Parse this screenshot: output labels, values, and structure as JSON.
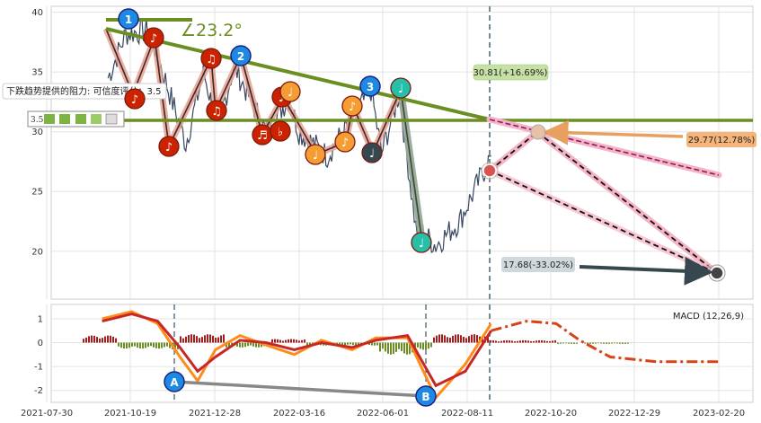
{
  "chart_data": [
    {
      "type": "line",
      "title": "",
      "xlabel": "",
      "ylabel": "",
      "ylim": [
        16,
        40.5
      ],
      "yticks": [
        20,
        25,
        30,
        35,
        40
      ],
      "grid": true,
      "x_ticks": [
        "2021-07-30",
        "2021-10-19",
        "2021-12-28",
        "2022-03-16",
        "2022-06-01",
        "2022-08-11",
        "2022-10-20",
        "2022-12-29",
        "2023-02-20"
      ],
      "price_series_notable_points": [
        {
          "x": "2021-09-20",
          "y": 34.5
        },
        {
          "x": "2021-10-05",
          "y": 38.2
        },
        {
          "x": "2021-10-25",
          "y": 38.5
        },
        {
          "x": "2021-11-25",
          "y": 29.0
        },
        {
          "x": "2021-12-10",
          "y": 35.0
        },
        {
          "x": "2021-12-22",
          "y": 30.5
        },
        {
          "x": "2022-01-05",
          "y": 35.5
        },
        {
          "x": "2022-02-01",
          "y": 30.0
        },
        {
          "x": "2022-02-20",
          "y": 32.8
        },
        {
          "x": "2022-03-01",
          "y": 30.0
        },
        {
          "x": "2022-03-25",
          "y": 28.0
        },
        {
          "x": "2022-04-20",
          "y": 31.8
        },
        {
          "x": "2022-05-01",
          "y": 33.5
        },
        {
          "x": "2022-05-10",
          "y": 28.2
        },
        {
          "x": "2022-05-25",
          "y": 33.2
        },
        {
          "x": "2022-06-08",
          "y": 22.0
        },
        {
          "x": "2022-06-25",
          "y": 20.5
        },
        {
          "x": "2022-07-15",
          "y": 22.5
        },
        {
          "x": "2022-08-11",
          "y": 28.0
        }
      ],
      "angle_label": "∠23.2°",
      "resistance_label": "下跌趋势提供的阻力: 可信度评分：3.5",
      "rating_value": "3.5",
      "annotations": [
        {
          "label": "30.81(+16.69%)",
          "x": "2022-08-20",
          "y": 30.81
        },
        {
          "label": "29.77(12.78%)",
          "x": "2022-10-01",
          "y": 29.77
        },
        {
          "label": "17.68(-33.02%)",
          "x": "2023-02-20",
          "y": 17.68
        }
      ],
      "pattern_labels": [
        "1",
        "2",
        "3"
      ]
    },
    {
      "type": "line",
      "title": "",
      "legend": "MACD (12,26,9)",
      "ylim": [
        -2.5,
        1.6
      ],
      "yticks": [
        1,
        0,
        -1,
        -2
      ],
      "series": [
        {
          "values": [
            1.0,
            1.3,
            0.8,
            -0.6,
            -1.6,
            -0.3,
            0.3,
            -0.1,
            -0.5,
            0.1,
            -0.3,
            0.2,
            0.2,
            -2.3,
            -0.9,
            0.8,
            0.9,
            0.8,
            0.0,
            -0.7,
            -0.8,
            -0.8
          ]
        },
        {
          "values": [
            0.9,
            1.2,
            0.9,
            -0.2,
            -1.2,
            -0.6,
            0.1,
            0.0,
            -0.3,
            0.0,
            -0.2,
            0.1,
            0.3,
            -1.8,
            -1.2,
            0.5,
            0.9,
            0.8,
            0.1,
            -0.6,
            -0.8,
            -0.8
          ]
        }
      ],
      "x": [
        "2021-09-15",
        "2021-10-10",
        "2021-11-01",
        "2021-11-20",
        "2021-12-05",
        "2021-12-20",
        "2022-01-10",
        "2022-02-01",
        "2022-02-25",
        "2022-03-20",
        "2022-04-15",
        "2022-05-05",
        "2022-06-01",
        "2022-06-25",
        "2022-07-20",
        "2022-08-11",
        "2022-09-10",
        "2022-10-05",
        "2022-10-25",
        "2022-11-20",
        "2022-12-29",
        "2023-02-20"
      ],
      "divergence_labels": [
        "A",
        "B"
      ]
    }
  ]
}
